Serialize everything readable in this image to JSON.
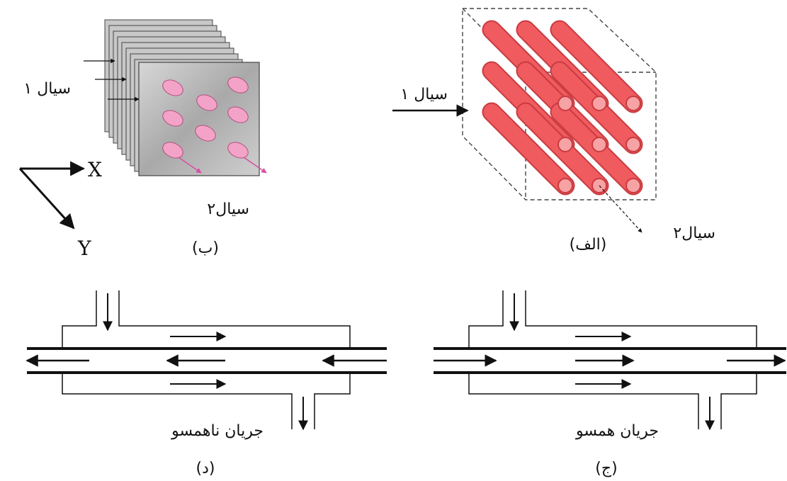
{
  "panel_b": {
    "fluid1": "سیال ۱",
    "fluid2": "سیال۲",
    "axis_x": "X",
    "axis_y": "Y",
    "caption": "(ب)"
  },
  "panel_alef": {
    "fluid1": "سیال ۱",
    "fluid2": "سیال۲",
    "caption": "(الف)"
  },
  "panel_d": {
    "flow_label": "جریان ناهمسو",
    "caption": "(د)"
  },
  "panel_j": {
    "flow_label": "جریان همسو",
    "caption": "(ج)"
  },
  "colors": {
    "tube_red": "#ef5b5e",
    "tube_dark": "#c93b40",
    "tube_end": "#f7a2a4",
    "plate_gray": "#b9b9b9",
    "pin_pink": "#f3a3c7",
    "arrow_pink": "#d94da0",
    "line": "#111111"
  }
}
